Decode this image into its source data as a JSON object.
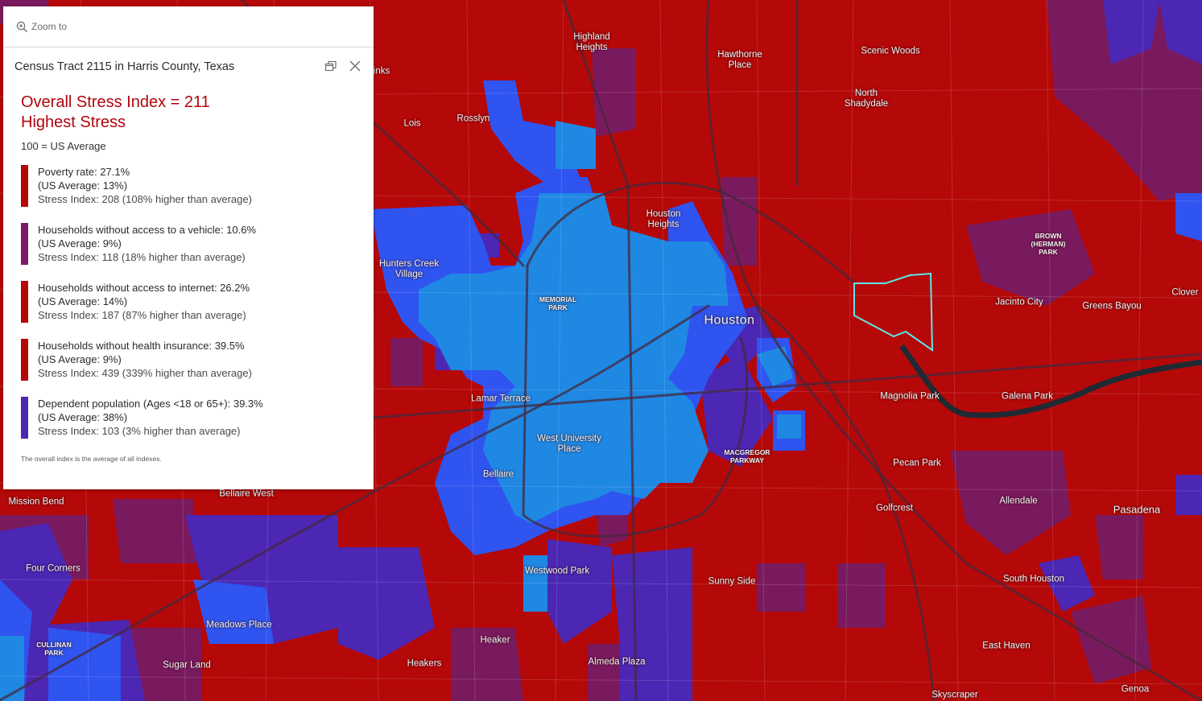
{
  "colors": {
    "highest_stress": "#b50808",
    "high_stress": "#7a1a5e",
    "medium_stress": "#4b27b4",
    "low_stress": "#2f54f0",
    "lowest_stress": "#1f88e3",
    "selection_outline": "#5ee6e6",
    "title_red": "#b0050d"
  },
  "popup": {
    "zoom_label": "Zoom to",
    "zoom_icon": "zoom-in-icon",
    "title": "Census Tract 2115 in Harris County, Texas",
    "dock_icon": "dock-icon",
    "close_icon": "close-icon",
    "overall_line1": "Overall Stress Index = 211",
    "overall_line2": "Highest Stress",
    "average_note": "100 = US Average",
    "metrics": [
      {
        "label": "Poverty rate: 27.1%",
        "us_avg": "(US Average: 13%)",
        "index": "Stress Index: 208 (108% higher than average)",
        "color": "#b50808"
      },
      {
        "label": "Households without access to a vehicle: 10.6%",
        "us_avg": "(US Average: 9%)",
        "index": "Stress Index: 118 (18% higher than average)",
        "color": "#7d1a63"
      },
      {
        "label": "Households without access to internet: 26.2%",
        "us_avg": "(US Average: 14%)",
        "index": "Stress Index: 187 (87% higher than average)",
        "color": "#b50808"
      },
      {
        "label": "Households without health insurance: 39.5%",
        "us_avg": "(US Average: 9%)",
        "index": "Stress Index: 439 (339% higher than average)",
        "color": "#b50808"
      },
      {
        "label": "Dependent population (Ages <18 or 65+): 39.3%",
        "us_avg": "(US Average: 38%)",
        "index": "Stress Index: 103 (3% higher than average)",
        "color": "#4b27b4"
      }
    ],
    "footnote": "The overall index is the average of all indexes."
  },
  "map_labels": {
    "highland_heights": "Highland\nHeights",
    "hawthorne_place": "Hawthorne\nPlace",
    "scenic_woods": "Scenic Woods",
    "north_shadydale": "North\nShadydale",
    "lois": "Lois",
    "rosslyn": "Rosslyn",
    "houston_heights": "Houston\nHeights",
    "brown_herman_park": "BROWN\n(HERMAN)\nPARK",
    "hunters_creek_village": "Hunters Creek\nVillage",
    "memorial_park": "MEMORIAL\nPARK",
    "houston": "Houston",
    "jacinto_city": "Jacinto City",
    "greens_bayou": "Greens Bayou",
    "cloverleaf": "Clover",
    "magnolia_park": "Magnolia Park",
    "galena_park": "Galena Park",
    "lamar_terrace": "Lamar Terrace",
    "west_university_place": "West University\nPlace",
    "macgregor_parkway": "MACGREGOR\nPARKWAY",
    "pecan_park": "Pecan Park",
    "bellaire": "Bellaire",
    "bellaire_west": "Bellaire West",
    "mission_bend": "Mission Bend",
    "golfcrest": "Golfcrest",
    "allendale": "Allendale",
    "pasadena": "Pasadena",
    "four_corners": "Four Corners",
    "westwood_park": "Westwood Park",
    "sunny_side": "Sunny Side",
    "south_houston": "South Houston",
    "meadows_place": "Meadows Place",
    "cullinan_park": "CULLINAN\nPARK",
    "heaker": "Heaker",
    "east_haven": "East Haven",
    "sugar_land": "Sugar Land",
    "heakers": "Heakers",
    "almeda_plaza": "Almeda Plaza",
    "skyscraper": "Skyscraper",
    "genoa": "Genoa",
    "inks": "inks"
  }
}
